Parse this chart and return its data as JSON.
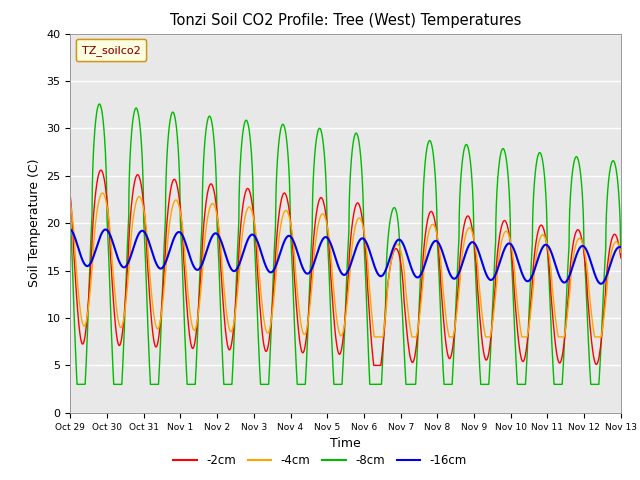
{
  "title": "Tonzi Soil CO2 Profile: Tree (West) Temperatures",
  "xlabel": "Time",
  "ylabel": "Soil Temperature (C)",
  "ylim": [
    0,
    40
  ],
  "bg_color": "#e8e8e8",
  "fig_bg": "#ffffff",
  "tick_labels": [
    "Oct 29",
    "Oct 30",
    "Oct 31",
    "Nov 1",
    "Nov 2",
    "Nov 3",
    "Nov 4",
    "Nov 5",
    "Nov 6",
    "Nov 7",
    "Nov 8",
    "Nov 9",
    "Nov 10",
    "Nov 11",
    "Nov 12",
    "Nov 13"
  ],
  "tick_positions": [
    0,
    1,
    2,
    3,
    4,
    5,
    6,
    7,
    8,
    9,
    10,
    11,
    12,
    13,
    14,
    15
  ],
  "line_colors": {
    "2cm": "#ff0000",
    "4cm": "#ffa500",
    "8cm": "#00bb00",
    "16cm": "#0000ee"
  },
  "legend_label": "TZ_soilco2",
  "legend_labels": [
    "-2cm",
    "-4cm",
    "-8cm",
    "-16cm"
  ],
  "yticks": [
    0,
    5,
    10,
    15,
    20,
    25,
    30,
    35,
    40
  ]
}
